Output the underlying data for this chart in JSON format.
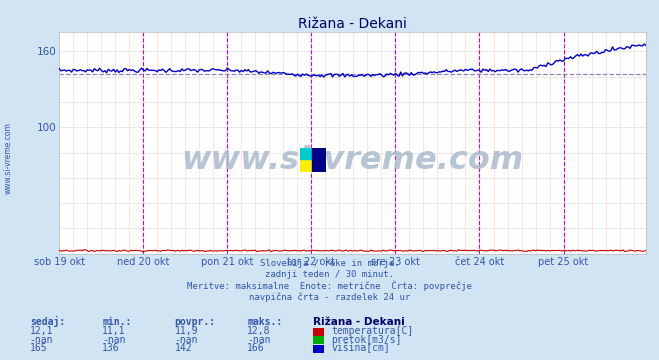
{
  "title": "Rižana - Dekani",
  "bg_color": "#d0e4f4",
  "plot_bg_color": "#ffffff",
  "x_labels": [
    "sob 19 okt",
    "ned 20 okt",
    "pon 21 okt",
    "tor 22 okt",
    "sre 23 okt",
    "čet 24 okt",
    "pet 25 okt"
  ],
  "ylim": [
    0,
    175
  ],
  "n_points": 336,
  "visina_avg": 142,
  "temp_color": "#cc0000",
  "pretok_color": "#00aa00",
  "visina_color": "#0000cc",
  "avg_line_color": "#8888bb",
  "vline_color": "#dd00dd",
  "text_color": "#3355aa",
  "title_color": "#000066",
  "watermark": "www.si-vreme.com",
  "footer_lines": [
    "Slovenija / reke in morje.",
    "zadnji teden / 30 minut.",
    "Meritve: maksimalne  Enote: metrične  Črta: povprečje",
    "navpična črta - razdelek 24 ur"
  ],
  "table_headers": [
    "sedaj:",
    "min.:",
    "povpr.:",
    "maks.:",
    "Rižana - Dekani"
  ],
  "table_rows": [
    [
      "12,1",
      "11,1",
      "11,9",
      "12,8",
      "temperatura[C]",
      "#cc0000"
    ],
    [
      "-nan",
      "-nan",
      "-nan",
      "-nan",
      "pretok[m3/s]",
      "#00aa00"
    ],
    [
      "165",
      "136",
      "142",
      "166",
      "višina[cm]",
      "#0000cc"
    ]
  ]
}
